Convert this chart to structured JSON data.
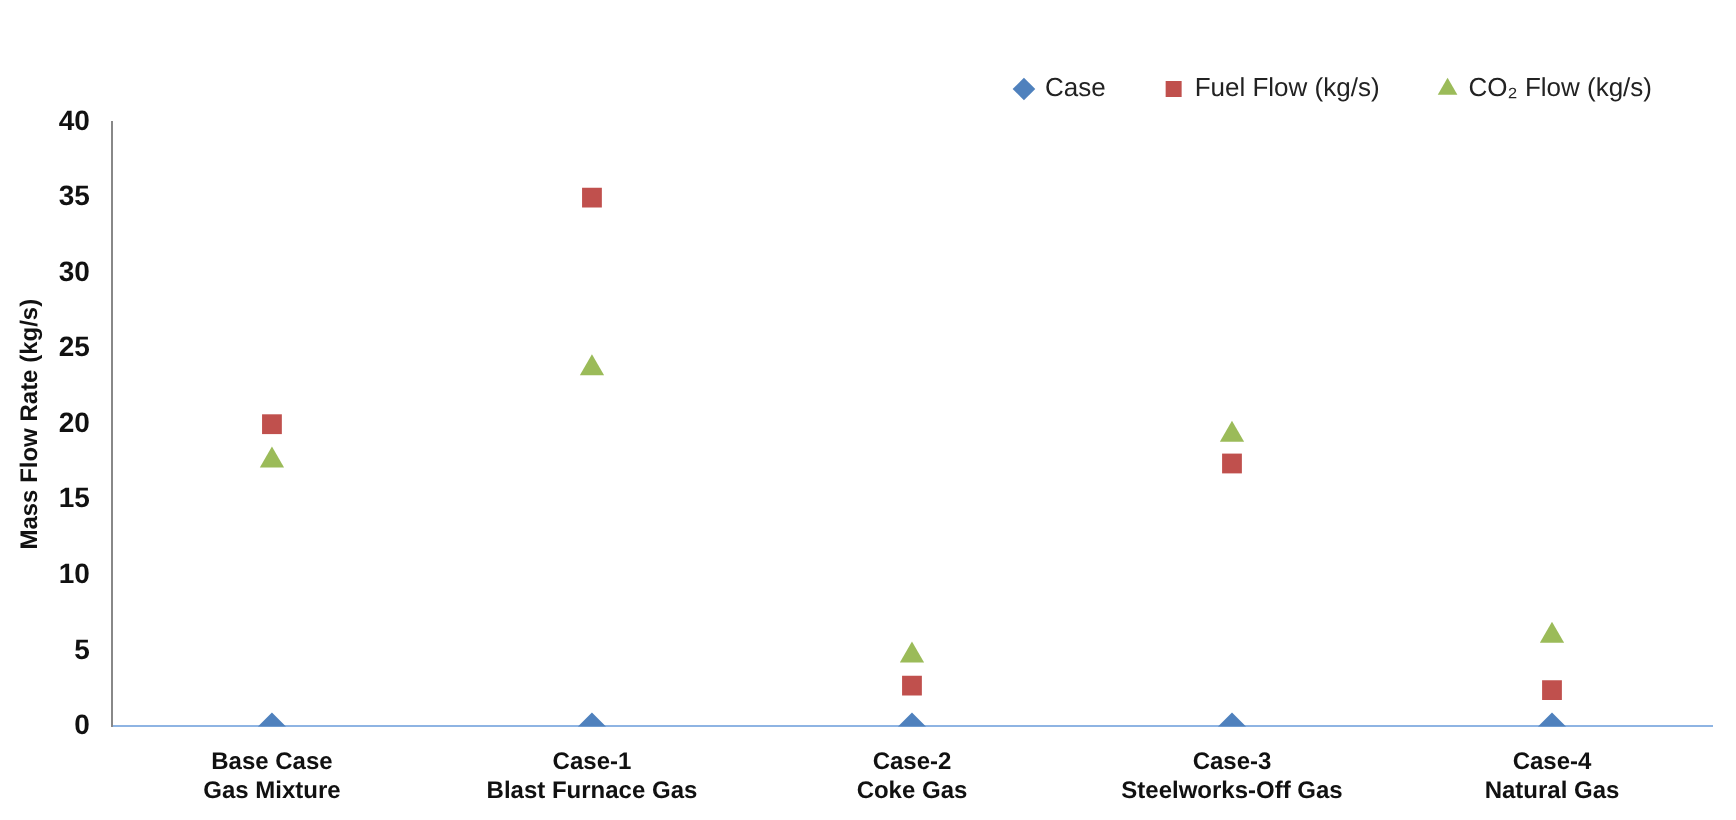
{
  "chart_data": {
    "type": "scatter",
    "ylabel": "Mass Flow Rate (kg/s)",
    "categories": [
      "Base Case\nGas Mixture",
      "Case-1\nBlast Furnace Gas",
      "Case-2\nCoke Gas",
      "Case-3\nSteelworks-Off Gas",
      "Case-4\nNatural Gas"
    ],
    "series": [
      {
        "name": "Case",
        "color": "#4f81bd",
        "marker": "diamond",
        "values": [
          0,
          0,
          0,
          0,
          0
        ]
      },
      {
        "name": "Fuel Flow (kg/s)",
        "color": "#c0504d",
        "marker": "square",
        "values": [
          20,
          35,
          2.7,
          17.4,
          2.4
        ]
      },
      {
        "name": "CO₂ Flow (kg/s)",
        "color": "#9bbb59",
        "marker": "triangle",
        "values": [
          17.6,
          23.7,
          4.7,
          19.3,
          6.0
        ]
      }
    ],
    "ylim": [
      0,
      40
    ],
    "yticks": [
      0,
      5,
      10,
      15,
      20,
      25,
      30,
      35,
      40
    ],
    "grid": false,
    "legend": "top right"
  }
}
